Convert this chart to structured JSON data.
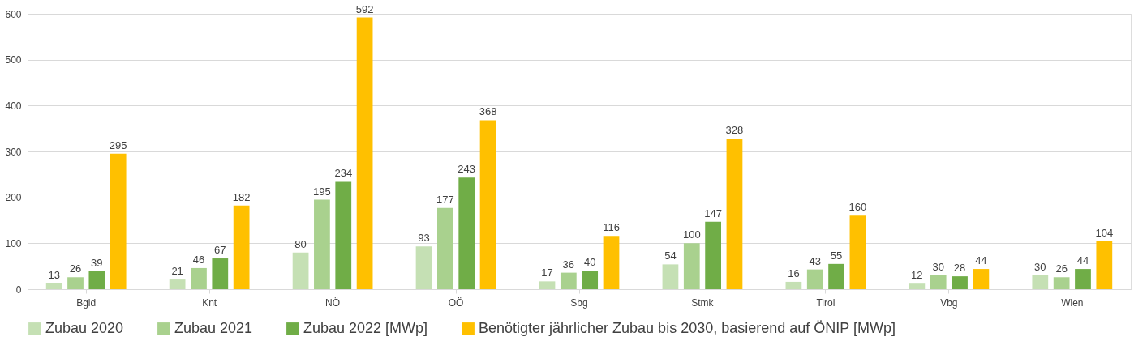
{
  "chart_data": {
    "type": "bar",
    "categories": [
      "Bgld",
      "Knt",
      "NÖ",
      "OÖ",
      "Sbg",
      "Stmk",
      "Tirol",
      "Vbg",
      "Wien"
    ],
    "series": [
      {
        "name": "Zubau 2020",
        "color": "#c5e0b4",
        "values": [
          13,
          21,
          80,
          93,
          17,
          54,
          16,
          12,
          30
        ]
      },
      {
        "name": "Zubau 2021",
        "color": "#a9d18e",
        "values": [
          26,
          46,
          195,
          177,
          36,
          100,
          43,
          30,
          26
        ]
      },
      {
        "name": "Zubau 2022 [MWp]",
        "color": "#70ad47",
        "values": [
          39,
          67,
          234,
          243,
          40,
          147,
          55,
          28,
          44
        ]
      },
      {
        "name": "Benötigter jährlicher Zubau bis 2030, basierend auf ÖNIP [MWp]",
        "color": "#ffc000",
        "values": [
          295,
          182,
          592,
          368,
          116,
          328,
          160,
          44,
          104
        ]
      }
    ],
    "ylim": [
      0,
      600
    ],
    "yticks": [
      0,
      100,
      200,
      300,
      400,
      500,
      600
    ],
    "grid": "y",
    "legend": "bottom",
    "data_labels": true
  }
}
